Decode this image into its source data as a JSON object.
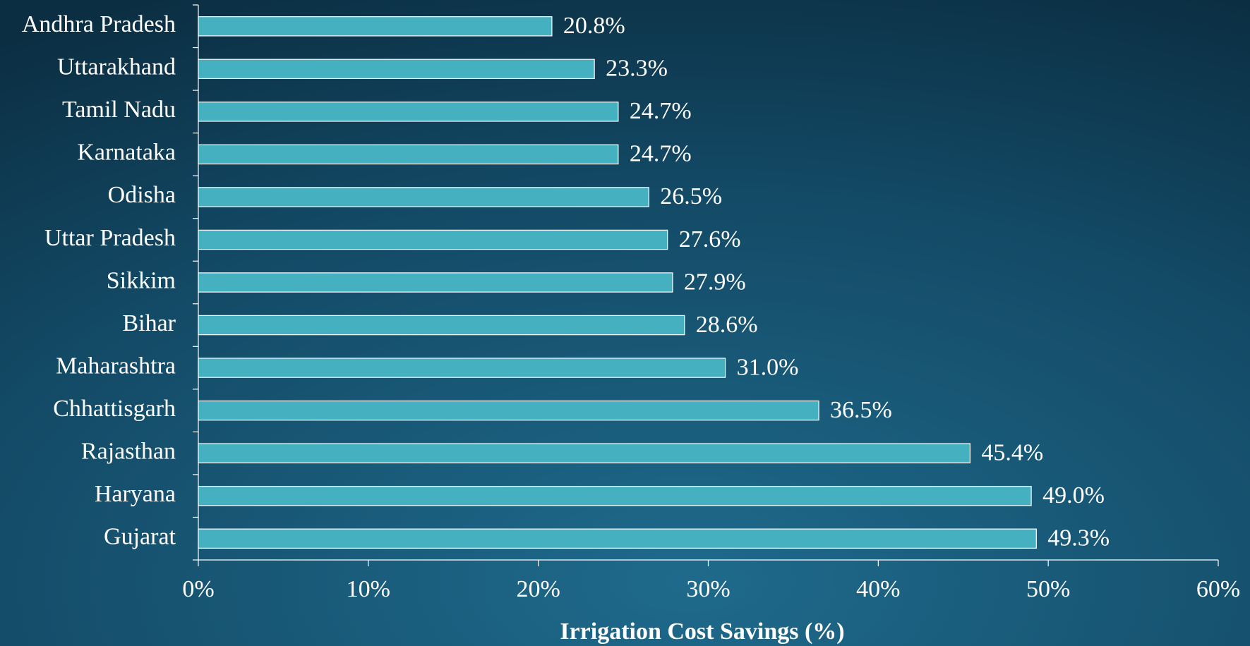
{
  "chart_data": {
    "type": "bar",
    "orientation": "horizontal",
    "xlabel": "Irrigation Cost Savings (%)",
    "categories": [
      "Andhra Pradesh",
      "Uttarakhand",
      "Tamil Nadu",
      "Karnataka",
      "Odisha",
      "Uttar Pradesh",
      "Sikkim",
      "Bihar",
      "Maharashtra",
      "Chhattisgarh",
      "Rajasthan",
      "Haryana",
      "Gujarat"
    ],
    "values": [
      20.8,
      23.3,
      24.7,
      24.7,
      26.5,
      27.6,
      27.9,
      28.6,
      31.0,
      36.5,
      45.4,
      49.0,
      49.3
    ],
    "value_labels": [
      "20.8%",
      "23.3%",
      "24.7%",
      "24.7%",
      "26.5%",
      "27.6%",
      "27.9%",
      "28.6%",
      "31.0%",
      "36.5%",
      "45.4%",
      "49.0%",
      "49.3%"
    ],
    "color": "#45b0c0",
    "xlim": [
      0,
      60
    ],
    "xticks": [
      {
        "value": 0,
        "label": "0%"
      },
      {
        "value": 10,
        "label": "10%"
      },
      {
        "value": 20,
        "label": "20%"
      },
      {
        "value": 30,
        "label": "30%"
      },
      {
        "value": 40,
        "label": "40%"
      },
      {
        "value": 50,
        "label": "50%"
      },
      {
        "value": 60,
        "label": "60%"
      }
    ]
  }
}
